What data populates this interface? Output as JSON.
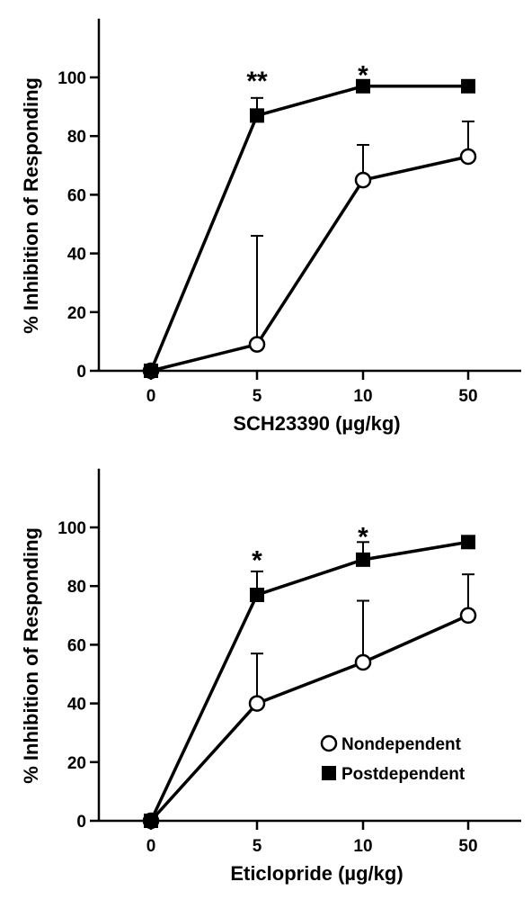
{
  "chart_data": [
    {
      "type": "line",
      "categories": [
        "0",
        "5",
        "10",
        "50"
      ],
      "xlabel": "SCH23390 (µg/kg)",
      "ylabel": "% Inhibition of Responding",
      "ylim": [
        0,
        120
      ],
      "yticks": [
        0,
        20,
        40,
        60,
        80,
        100
      ],
      "grid": false,
      "series": [
        {
          "key": "nondependent",
          "marker": "open-circle",
          "values": [
            0,
            9,
            65,
            73
          ],
          "error_upper": [
            0,
            46,
            77,
            85
          ]
        },
        {
          "key": "postdependent",
          "marker": "filled-square",
          "values": [
            0,
            87,
            97,
            97
          ],
          "error_upper": [
            0,
            93,
            97,
            97
          ]
        }
      ],
      "annotations": [
        {
          "category": "5",
          "text": "**",
          "y": 100
        },
        {
          "category": "10",
          "text": "*",
          "y": 102
        }
      ]
    },
    {
      "type": "line",
      "categories": [
        "0",
        "5",
        "10",
        "50"
      ],
      "xlabel": "Eticlopride (µg/kg)",
      "ylabel": "% Inhibition of Responding",
      "ylim": [
        0,
        120
      ],
      "yticks": [
        0,
        20,
        40,
        60,
        80,
        100
      ],
      "grid": false,
      "legend_position": "bottom-right",
      "series": [
        {
          "key": "nondependent",
          "name": "Nondependent",
          "marker": "open-circle",
          "values": [
            0,
            40,
            54,
            70
          ],
          "error_upper": [
            0,
            57,
            75,
            84
          ]
        },
        {
          "key": "postdependent",
          "name": "Postdependent",
          "marker": "filled-square",
          "values": [
            0,
            77,
            89,
            95
          ],
          "error_upper": [
            0,
            85,
            95,
            95
          ]
        }
      ],
      "annotations": [
        {
          "category": "5",
          "text": "*",
          "y": 90
        },
        {
          "category": "10",
          "text": "*",
          "y": 98
        }
      ]
    }
  ]
}
